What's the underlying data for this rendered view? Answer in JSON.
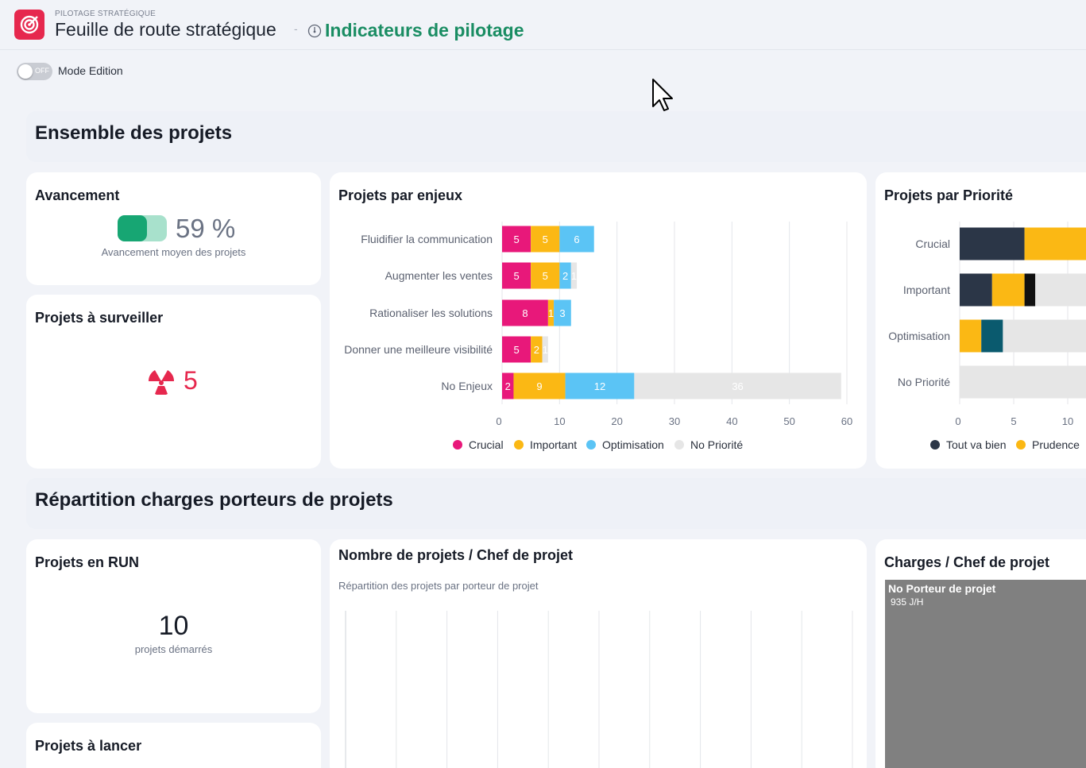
{
  "header": {
    "eyebrow": "PILOTAGE STRATÉGIQUE",
    "title": "Feuille de route stratégique",
    "separator": "-",
    "subpage": "Indicateurs de pilotage",
    "logo_icon": "target-icon",
    "subpage_icon": "gauge-icon"
  },
  "toolbar": {
    "toggle_state": "OFF",
    "mode_label": "Mode Edition"
  },
  "sections": {
    "projects": "Ensemble des projets",
    "charges": "Répartition charges porteurs de projets"
  },
  "avancement": {
    "title": "Avancement",
    "percent_value": 59,
    "percent_text": "59 %",
    "caption": "Avancement moyen des projets"
  },
  "surveiller": {
    "title": "Projets à surveiller",
    "value": "5",
    "icon": "radiation-icon"
  },
  "run": {
    "title": "Projets en RUN",
    "value": "10",
    "caption": "projets démarrés"
  },
  "lancer": {
    "title": "Projets à lancer"
  },
  "enjeux_card": {
    "title": "Projets par enjeux"
  },
  "priorite_card": {
    "title": "Projets par Priorité"
  },
  "chef_card": {
    "title": "Nombre de projets / Chef de projet",
    "subtitle": "Répartition des projets par porteur de projet"
  },
  "charges_card": {
    "title": "Charges / Chef de projet",
    "treemap_label": "No Porteur de projet",
    "treemap_value": "935 J/H"
  },
  "colors": {
    "crucial": "#e8187a",
    "important": "#fbb814",
    "optimisation": "#5bc4f5",
    "no_priorite": "#e6e6e6",
    "tout_va_bien": "#2b3647",
    "prudence": "#fbb814",
    "black": "#111111",
    "teal": "#0a5a6e",
    "accent": "#1a8d63",
    "brand": "#e6284e"
  },
  "chart_data": [
    {
      "type": "bar",
      "orientation": "horizontal",
      "stacked": true,
      "categories": [
        "Fluidifier la communication",
        "Augmenter les ventes",
        "Rationaliser les solutions",
        "Donner une meilleure visibilité",
        "No Enjeux"
      ],
      "series": [
        {
          "name": "Crucial",
          "values": [
            5,
            5,
            8,
            5,
            2
          ]
        },
        {
          "name": "Important",
          "values": [
            5,
            5,
            1,
            2,
            9
          ]
        },
        {
          "name": "Optimisation",
          "values": [
            6,
            2,
            3,
            0,
            12
          ]
        },
        {
          "name": "No Priorité",
          "values": [
            0,
            1,
            0,
            1,
            36
          ]
        }
      ],
      "xlim": [
        0,
        60
      ],
      "xticks": [
        "0",
        "10",
        "20",
        "30",
        "40",
        "50",
        "60"
      ],
      "grid": true,
      "legend_position": "bottom"
    },
    {
      "type": "bar",
      "orientation": "horizontal",
      "stacked": true,
      "categories": [
        "Crucial",
        "Important",
        "Optimisation",
        "No Priorité"
      ],
      "series": [
        {
          "name": "Tout va bien",
          "values": [
            6,
            3,
            0,
            0
          ]
        },
        {
          "name": "Prudence",
          "values": [
            6,
            3,
            2,
            0
          ]
        },
        {
          "name": "",
          "values": [
            0,
            1,
            0,
            0
          ]
        },
        {
          "name": "",
          "values": [
            0,
            0,
            2,
            0
          ]
        },
        {
          "name": "",
          "values": [
            0,
            6,
            8,
            12
          ]
        }
      ],
      "xticks": [
        "0",
        "5",
        "10"
      ],
      "grid": true,
      "legend_position": "bottom"
    }
  ]
}
